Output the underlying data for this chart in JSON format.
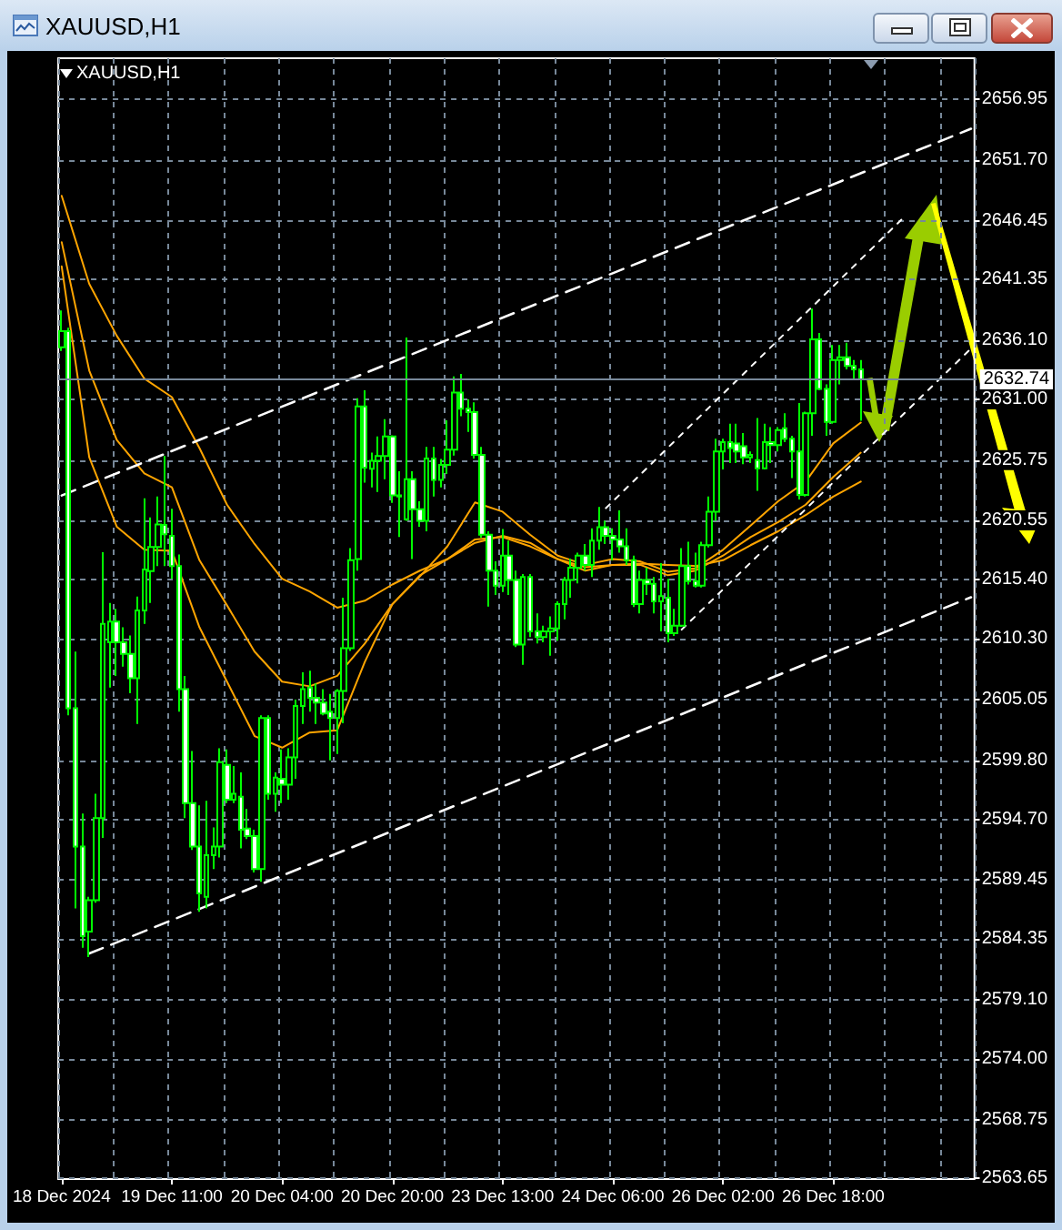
{
  "chart_data": {
    "type": "candlestick",
    "title": "XAUUSD,H1",
    "subtitle": "XAUUSD,H1",
    "color": "#00ff00",
    "categories": [
      "18 Dec 2024",
      null,
      null,
      null,
      null,
      null,
      null,
      null,
      null,
      null,
      null,
      null,
      null,
      null,
      null,
      null,
      "19 Dec 11:00",
      null,
      null,
      null,
      null,
      null,
      null,
      null,
      null,
      null,
      null,
      null,
      null,
      null,
      null,
      null,
      "20 Dec 04:00",
      null,
      null,
      null,
      null,
      null,
      null,
      null,
      null,
      null,
      null,
      null,
      null,
      null,
      null,
      null,
      "20 Dec 20:00",
      null,
      null,
      null,
      null,
      null,
      null,
      null,
      null,
      null,
      null,
      null,
      null,
      null,
      null,
      null,
      "23 Dec 13:00",
      null,
      null,
      null,
      null,
      null,
      null,
      null,
      null,
      null,
      null,
      null,
      null,
      null,
      null,
      null,
      "24 Dec 06:00",
      null,
      null,
      null,
      null,
      null,
      null,
      null,
      null,
      null,
      null,
      null,
      null,
      null,
      null,
      null,
      "26 Dec 02:00",
      null,
      null,
      null,
      null,
      null,
      null,
      null,
      null,
      null,
      null,
      null,
      null,
      null,
      null,
      null,
      "26 Dec 18:00",
      null,
      null,
      null,
      null,
      null,
      null,
      null,
      null,
      null,
      null,
      null,
      null,
      null,
      null,
      null,
      null,
      null,
      null,
      null,
      null
    ],
    "ohlc": [
      [
        2635.5,
        2638.7,
        2635.2,
        2636.9
      ],
      [
        2636.9,
        2637.2,
        2603.7,
        2604.3
      ],
      [
        2604.3,
        2609.2,
        2587.0,
        2592.35
      ],
      [
        2592.35,
        2595.2,
        2583.6,
        2584.6
      ],
      [
        2585.0,
        2588.0,
        2582.8,
        2587.7
      ],
      [
        2587.7,
        2596.9,
        2587.5,
        2594.8
      ],
      [
        2594.8,
        2617.8,
        2593.1,
        2611.6
      ],
      [
        2610.0,
        2613.4,
        2606.1,
        2611.8
      ],
      [
        2611.8,
        2612.9,
        2607.1,
        2610.0
      ],
      [
        2610.0,
        2611.3,
        2607.9,
        2609.0
      ],
      [
        2609.0,
        2610.6,
        2605.6,
        2606.9
      ],
      [
        2606.9,
        2613.95,
        2602.95,
        2612.75
      ],
      [
        2612.75,
        2622.45,
        2611.6,
        2616.3
      ],
      [
        2616.15,
        2620.8,
        2613.4,
        2618.25
      ],
      [
        2618.25,
        2622.6,
        2616.6,
        2620.2
      ],
      [
        2620.15,
        2626.1,
        2616.6,
        2619.35
      ],
      [
        2619.2,
        2621.55,
        2615.5,
        2616.6
      ],
      [
        2616.6,
        2617.6,
        2604.0,
        2605.95
      ],
      [
        2605.95,
        2607.1,
        2594.8,
        2596.1
      ],
      [
        2596.1,
        2600.6,
        2592.05,
        2592.35
      ],
      [
        2592.35,
        2595.9,
        2586.7,
        2588.3
      ],
      [
        2588.0,
        2596.3,
        2587.0,
        2591.6
      ],
      [
        2591.6,
        2594.0,
        2590.4,
        2592.35
      ],
      [
        2592.35,
        2600.85,
        2591.4,
        2599.65
      ],
      [
        2599.4,
        2600.75,
        2596.1,
        2596.4
      ],
      [
        2596.4,
        2599.3,
        2596.1,
        2596.9
      ],
      [
        2596.65,
        2598.75,
        2592.2,
        2593.8
      ],
      [
        2593.9,
        2595.6,
        2593.0,
        2593.25
      ],
      [
        2593.25,
        2593.8,
        2590.1,
        2590.4
      ],
      [
        2590.4,
        2603.7,
        2589.3,
        2603.45
      ],
      [
        2603.45,
        2603.7,
        2596.4,
        2596.9
      ],
      [
        2596.9,
        2598.75,
        2595.35,
        2598.3
      ],
      [
        2598.2,
        2600.75,
        2596.1,
        2597.7
      ],
      [
        2597.7,
        2600.85,
        2596.4,
        2600.05
      ],
      [
        2600.05,
        2605.05,
        2598.2,
        2604.5
      ],
      [
        2604.5,
        2607.4,
        2602.95,
        2605.95
      ],
      [
        2606.1,
        2607.55,
        2604.0,
        2605.2
      ],
      [
        2605.2,
        2606.45,
        2602.95,
        2604.8
      ],
      [
        2604.8,
        2605.95,
        2603.7,
        2603.85
      ],
      [
        2604.0,
        2605.55,
        2599.8,
        2603.45
      ],
      [
        2603.45,
        2605.95,
        2600.35,
        2605.8
      ],
      [
        2605.8,
        2613.85,
        2603.0,
        2609.5
      ],
      [
        2609.5,
        2618.15,
        2609.25,
        2617.1
      ],
      [
        2617.2,
        2631.1,
        2616.2,
        2630.4
      ],
      [
        2630.4,
        2631.8,
        2623.8,
        2625.1
      ],
      [
        2625.0,
        2626.4,
        2623.4,
        2625.7
      ],
      [
        2625.7,
        2627.8,
        2623.0,
        2626.1
      ],
      [
        2626.1,
        2629.3,
        2624.1,
        2627.8
      ],
      [
        2627.8,
        2627.9,
        2622.05,
        2622.7
      ],
      [
        2622.7,
        2624.8,
        2619.1,
        2622.6
      ],
      [
        2620.65,
        2636.35,
        2620.5,
        2624.1
      ],
      [
        2624.1,
        2624.8,
        2617.2,
        2621.5
      ],
      [
        2621.5,
        2622.2,
        2620.0,
        2620.5
      ],
      [
        2620.5,
        2626.9,
        2619.6,
        2625.9
      ],
      [
        2625.9,
        2626.9,
        2622.6,
        2624.05
      ],
      [
        2624.05,
        2625.85,
        2623.4,
        2625.35
      ],
      [
        2625.35,
        2629.2,
        2624.55,
        2626.65
      ],
      [
        2626.65,
        2633.0,
        2626.15,
        2631.6
      ],
      [
        2631.6,
        2633.2,
        2629.55,
        2630.2
      ],
      [
        2630.2,
        2631.0,
        2628.2,
        2629.9
      ],
      [
        2629.9,
        2630.75,
        2625.9,
        2626.2
      ],
      [
        2626.2,
        2626.9,
        2619.05,
        2619.3
      ],
      [
        2619.3,
        2619.6,
        2613.1,
        2616.2
      ],
      [
        2616.2,
        2617.0,
        2614.1,
        2614.9
      ],
      [
        2614.9,
        2619.8,
        2614.35,
        2617.5
      ],
      [
        2617.5,
        2618.8,
        2614.1,
        2615.4
      ],
      [
        2615.4,
        2616.2,
        2609.6,
        2609.8
      ],
      [
        2609.8,
        2615.9,
        2608.05,
        2615.65
      ],
      [
        2615.65,
        2615.9,
        2610.45,
        2610.95
      ],
      [
        2610.95,
        2612.5,
        2609.9,
        2610.45
      ],
      [
        2610.45,
        2611.45,
        2610.0,
        2610.95
      ],
      [
        2610.95,
        2612.25,
        2608.85,
        2611.2
      ],
      [
        2611.2,
        2613.55,
        2610.15,
        2613.3
      ],
      [
        2613.3,
        2615.65,
        2612.0,
        2615.4
      ],
      [
        2615.4,
        2617.25,
        2613.85,
        2616.45
      ],
      [
        2616.45,
        2617.75,
        2615.1,
        2617.5
      ],
      [
        2617.5,
        2618.5,
        2616.2,
        2616.7
      ],
      [
        2616.7,
        2619.85,
        2615.65,
        2618.8
      ],
      [
        2618.8,
        2621.7,
        2618.0,
        2619.95
      ],
      [
        2619.95,
        2620.5,
        2618.5,
        2619.2
      ],
      [
        2619.2,
        2619.85,
        2617.1,
        2618.9
      ],
      [
        2618.9,
        2621.4,
        2617.75,
        2618.3
      ],
      [
        2618.3,
        2619.85,
        2616.7,
        2617.1
      ],
      [
        2617.1,
        2617.5,
        2613.05,
        2613.3
      ],
      [
        2613.3,
        2616.2,
        2612.5,
        2615.4
      ],
      [
        2615.4,
        2616.45,
        2614.1,
        2615.05
      ],
      [
        2615.05,
        2615.65,
        2612.5,
        2613.55
      ],
      [
        2613.55,
        2616.85,
        2610.95,
        2614.0
      ],
      [
        2613.85,
        2615.5,
        2610.0,
        2610.8
      ],
      [
        2610.8,
        2612.9,
        2610.55,
        2611.45
      ],
      [
        2611.45,
        2618.15,
        2611.35,
        2616.6
      ],
      [
        2616.6,
        2618.7,
        2615.0,
        2615.3
      ],
      [
        2615.3,
        2617.75,
        2614.75,
        2614.9
      ],
      [
        2614.9,
        2618.7,
        2614.75,
        2618.4
      ],
      [
        2618.4,
        2622.6,
        2618.2,
        2621.3
      ],
      [
        2621.3,
        2627.6,
        2620.5,
        2626.5
      ],
      [
        2626.5,
        2627.6,
        2624.95,
        2627.3
      ],
      [
        2627.3,
        2628.9,
        2625.5,
        2626.8
      ],
      [
        2627.2,
        2628.9,
        2625.5,
        2626.5
      ],
      [
        2626.95,
        2628.1,
        2625.4,
        2626.0
      ],
      [
        2626.0,
        2626.5,
        2625.5,
        2626.2
      ],
      [
        2625.75,
        2629.4,
        2623.1,
        2625.05
      ],
      [
        2625.05,
        2628.9,
        2624.95,
        2627.3
      ],
      [
        2627.3,
        2628.6,
        2625.5,
        2627.05
      ],
      [
        2627.05,
        2628.6,
        2626.5,
        2628.35
      ],
      [
        2628.5,
        2629.8,
        2627.3,
        2627.6
      ],
      [
        2627.6,
        2627.85,
        2624.2,
        2626.5
      ],
      [
        2626.5,
        2630.7,
        2622.35,
        2622.75
      ],
      [
        2622.75,
        2629.95,
        2622.6,
        2629.8
      ],
      [
        2629.8,
        2638.85,
        2627.85,
        2636.2
      ],
      [
        2636.2,
        2636.75,
        2631.8,
        2631.9
      ],
      [
        2631.9,
        2632.3,
        2627.85,
        2629.05
      ],
      [
        2629.05,
        2635.7,
        2628.9,
        2634.4
      ],
      [
        2634.4,
        2635.7,
        2632.3,
        2634.65
      ],
      [
        2634.65,
        2635.9,
        2633.6,
        2633.9
      ],
      [
        2633.9,
        2634.4,
        2632.8,
        2633.6
      ],
      [
        2633.6,
        2634.4,
        2629.15,
        2632.74
      ],
      null,
      null,
      null,
      null,
      null,
      null,
      null,
      null,
      null,
      null,
      null,
      null,
      null,
      null,
      null,
      null
    ],
    "series": [
      {
        "type": "line",
        "color": "#ffa500",
        "values": [
          2648.6,
          null,
          null,
          null,
          2641.0,
          null,
          null,
          null,
          2636.5,
          null,
          null,
          null,
          2632.8,
          null,
          null,
          null,
          2631.2,
          null,
          null,
          null,
          2626.8,
          null,
          null,
          null,
          2621.9,
          null,
          null,
          null,
          2618.5,
          null,
          null,
          null,
          2615.5,
          null,
          null,
          null,
          2614.4,
          null,
          null,
          null,
          2613.0,
          null,
          null,
          null,
          2613.6,
          null,
          null,
          null,
          2615.0,
          null,
          null,
          null,
          2616.2,
          null,
          null,
          null,
          2617.2,
          null,
          null,
          null,
          2618.6,
          null,
          null,
          null,
          2619.2,
          null,
          null,
          null,
          2618.6,
          null,
          null,
          null,
          2617.2,
          null,
          null,
          null,
          2616.2,
          null,
          null,
          null,
          2616.7,
          null,
          null,
          null,
          2616.8,
          null,
          null,
          null,
          2616.7,
          null,
          null,
          null,
          2616.6,
          null,
          null,
          null,
          2617.1,
          null,
          null,
          null,
          2618.4,
          null,
          null,
          null,
          2619.6,
          null,
          null,
          null,
          2621.0,
          null,
          null,
          null,
          2622.6,
          null,
          null,
          null,
          2623.9,
          null,
          null,
          null,
          null,
          null,
          null,
          null,
          null,
          null,
          null,
          null,
          null,
          null,
          null,
          null,
          null
        ]
      },
      {
        "type": "line",
        "color": "#ffa500",
        "values": [
          2644.6,
          null,
          null,
          null,
          2633.5,
          null,
          null,
          null,
          2627.5,
          null,
          null,
          null,
          2624.6,
          null,
          null,
          null,
          2623.4,
          null,
          null,
          null,
          2617.1,
          null,
          null,
          null,
          2613.2,
          null,
          null,
          null,
          2609.2,
          null,
          null,
          null,
          2606.6,
          null,
          null,
          null,
          2606.2,
          null,
          null,
          null,
          2607.1,
          null,
          null,
          null,
          2609.9,
          null,
          null,
          null,
          2613.3,
          null,
          null,
          null,
          2615.8,
          null,
          null,
          null,
          2617.2,
          null,
          null,
          null,
          2618.9,
          null,
          null,
          null,
          2619.1,
          null,
          null,
          null,
          2618.3,
          null,
          null,
          null,
          2617.2,
          null,
          null,
          null,
          2616.5,
          null,
          null,
          null,
          2616.7,
          null,
          null,
          null,
          2616.7,
          null,
          null,
          null,
          2615.8,
          null,
          null,
          null,
          2616.2,
          null,
          null,
          null,
          2617.5,
          null,
          null,
          null,
          2619.1,
          null,
          null,
          null,
          2620.4,
          null,
          null,
          null,
          2621.9,
          null,
          null,
          null,
          2624.3,
          null,
          null,
          null,
          2626.4,
          null,
          null,
          null,
          null,
          null,
          null,
          null,
          null,
          null,
          null,
          null,
          null,
          null,
          null,
          null,
          null
        ]
      },
      {
        "type": "line",
        "color": "#ffa500",
        "values": [
          2642.5,
          null,
          null,
          null,
          2626.0,
          null,
          null,
          null,
          2620.0,
          null,
          null,
          null,
          2618.0,
          null,
          null,
          null,
          2617.9,
          null,
          null,
          null,
          2611.3,
          null,
          null,
          null,
          2606.6,
          null,
          null,
          null,
          2601.9,
          null,
          null,
          null,
          2600.9,
          null,
          null,
          null,
          2602.2,
          null,
          null,
          null,
          2602.4,
          null,
          null,
          null,
          2608.3,
          null,
          null,
          null,
          2613.3,
          null,
          null,
          null,
          2615.7,
          null,
          null,
          null,
          2618.3,
          null,
          null,
          null,
          2622.1,
          null,
          null,
          null,
          2621.3,
          null,
          null,
          null,
          2619.3,
          null,
          null,
          null,
          2617.5,
          null,
          null,
          null,
          2616.7,
          null,
          null,
          null,
          2617.2,
          null,
          null,
          null,
          2617.0,
          null,
          null,
          null,
          2616.1,
          null,
          null,
          null,
          2616.4,
          null,
          null,
          null,
          2618.0,
          null,
          null,
          null,
          2620.1,
          null,
          null,
          null,
          2622.2,
          null,
          null,
          null,
          2623.9,
          null,
          null,
          null,
          2627.2,
          null,
          null,
          null,
          2629.0,
          null,
          null,
          null,
          null,
          null,
          null,
          null,
          null,
          null,
          null,
          null,
          null,
          null,
          null,
          null,
          null
        ]
      },
      {
        "type": "line",
        "color": "#ffffff",
        "line_style": "dashed",
        "values": [
          2622.7,
          null,
          null,
          null,
          null,
          null,
          null,
          null,
          null,
          null,
          null,
          null,
          null,
          null,
          null,
          null,
          null,
          null,
          null,
          null,
          null,
          null,
          null,
          null,
          null,
          null,
          null,
          null,
          null,
          null,
          null,
          null,
          null,
          null,
          null,
          null,
          null,
          null,
          null,
          null,
          null,
          null,
          null,
          null,
          null,
          null,
          null,
          null,
          null,
          null,
          null,
          null,
          null,
          null,
          null,
          null,
          null,
          null,
          null,
          null,
          null,
          null,
          null,
          null,
          null,
          null,
          null,
          null,
          null,
          null,
          null,
          null,
          null,
          null,
          null,
          null,
          null,
          null,
          null,
          null,
          null,
          null,
          null,
          null,
          null,
          null,
          null,
          null,
          null,
          null,
          null,
          null,
          null,
          null,
          null,
          null,
          null,
          null,
          null,
          null,
          null,
          null,
          null,
          null,
          null,
          null,
          null,
          null,
          null,
          null,
          null,
          null,
          null,
          null,
          null,
          null,
          null,
          null,
          null,
          null,
          null,
          null,
          null,
          null,
          null,
          null,
          null,
          null,
          null,
          null,
          null,
          null,
          2654.4
        ]
      },
      {
        "type": "line",
        "color": "#ffffff",
        "line_style": "dashed",
        "values": [
          null,
          null,
          null,
          null,
          2583.1,
          null,
          null,
          null,
          null,
          null,
          null,
          null,
          null,
          null,
          null,
          null,
          null,
          null,
          null,
          null,
          null,
          null,
          null,
          null,
          null,
          null,
          null,
          null,
          null,
          null,
          null,
          null,
          null,
          null,
          null,
          null,
          null,
          null,
          null,
          null,
          null,
          null,
          null,
          null,
          null,
          null,
          null,
          null,
          null,
          null,
          null,
          null,
          null,
          null,
          null,
          null,
          null,
          null,
          null,
          null,
          null,
          null,
          null,
          null,
          null,
          null,
          null,
          null,
          null,
          null,
          null,
          null,
          null,
          null,
          null,
          null,
          null,
          null,
          null,
          null,
          null,
          null,
          null,
          null,
          null,
          null,
          null,
          null,
          null,
          null,
          null,
          null,
          null,
          null,
          null,
          null,
          null,
          null,
          null,
          null,
          null,
          null,
          null,
          null,
          null,
          null,
          null,
          null,
          null,
          null,
          null,
          null,
          null,
          null,
          null,
          null,
          null,
          null,
          null,
          null,
          null,
          null,
          null,
          null,
          null,
          null,
          null,
          null,
          null,
          null,
          null,
          null,
          2613.9
        ]
      },
      {
        "type": "line",
        "color": "#ffffff",
        "line_style": "dotted",
        "values": [
          null,
          null,
          null,
          null,
          null,
          null,
          null,
          null,
          null,
          null,
          null,
          null,
          null,
          null,
          null,
          null,
          null,
          null,
          null,
          null,
          null,
          null,
          null,
          null,
          null,
          null,
          null,
          null,
          null,
          null,
          null,
          null,
          null,
          null,
          null,
          null,
          null,
          null,
          null,
          null,
          null,
          null,
          null,
          null,
          null,
          null,
          null,
          null,
          null,
          null,
          null,
          null,
          null,
          null,
          null,
          null,
          null,
          null,
          null,
          null,
          null,
          null,
          null,
          null,
          null,
          null,
          null,
          null,
          null,
          null,
          null,
          null,
          null,
          null,
          null,
          null,
          null,
          null,
          null,
          2621.6,
          null,
          null,
          null,
          null,
          null,
          null,
          null,
          null,
          null,
          null,
          null,
          null,
          null,
          null,
          null,
          null,
          null,
          null,
          null,
          null,
          null,
          null,
          null,
          null,
          null,
          null,
          null,
          null,
          null,
          null,
          null,
          null,
          null,
          null,
          null,
          null,
          null,
          null,
          null,
          null,
          null,
          null,
          2646.6,
          null,
          null,
          null,
          null,
          null,
          null,
          null,
          null,
          null,
          null
        ]
      },
      {
        "type": "line",
        "color": "#ffffff",
        "line_style": "dotted",
        "values": [
          null,
          null,
          null,
          null,
          null,
          null,
          null,
          null,
          null,
          null,
          null,
          null,
          null,
          null,
          null,
          null,
          null,
          null,
          null,
          null,
          null,
          null,
          null,
          null,
          null,
          null,
          null,
          null,
          null,
          null,
          null,
          null,
          null,
          null,
          null,
          null,
          null,
          null,
          null,
          null,
          null,
          null,
          null,
          null,
          null,
          null,
          null,
          null,
          null,
          null,
          null,
          null,
          null,
          null,
          null,
          null,
          null,
          null,
          null,
          null,
          null,
          null,
          null,
          null,
          null,
          null,
          null,
          null,
          null,
          null,
          null,
          null,
          null,
          null,
          null,
          null,
          null,
          null,
          null,
          null,
          null,
          null,
          null,
          null,
          null,
          null,
          null,
          null,
          null,
          null,
          2611.1,
          null,
          null,
          null,
          null,
          null,
          null,
          null,
          null,
          null,
          null,
          null,
          null,
          null,
          null,
          null,
          null,
          null,
          null,
          null,
          null,
          null,
          null,
          null,
          null,
          null,
          null,
          null,
          null,
          null,
          null,
          null,
          null,
          null,
          null,
          null,
          null,
          null,
          null,
          null,
          null,
          null,
          2635.4
        ]
      }
    ],
    "ylim": [
      2563.6,
      2660.5
    ],
    "yticks": [
      2563.65,
      2568.75,
      {
        "value": 2574,
        "label": "2574.00"
      },
      {
        "value": 2579.1,
        "label": "2579.10"
      },
      2584.35,
      2589.45,
      {
        "value": 2594.7,
        "label": "2594.70"
      },
      {
        "value": 2599.8,
        "label": "2599.80"
      },
      2605.05,
      {
        "value": 2610.3,
        "label": "2610.30"
      },
      {
        "value": 2615.4,
        "label": "2615.40"
      },
      2620.55,
      2625.75,
      {
        "value": 2631,
        "label": "2631.00"
      },
      {
        "value": 2636.1,
        "label": "2636.10"
      },
      2641.35,
      2646.45,
      {
        "value": 2651.7,
        "label": "2651.70"
      },
      2656.95
    ],
    "grid": true,
    "ref_lines": [
      {
        "axis": "y",
        "value": 2632.74,
        "label": "2632.74",
        "color": "#778899"
      }
    ]
  }
}
